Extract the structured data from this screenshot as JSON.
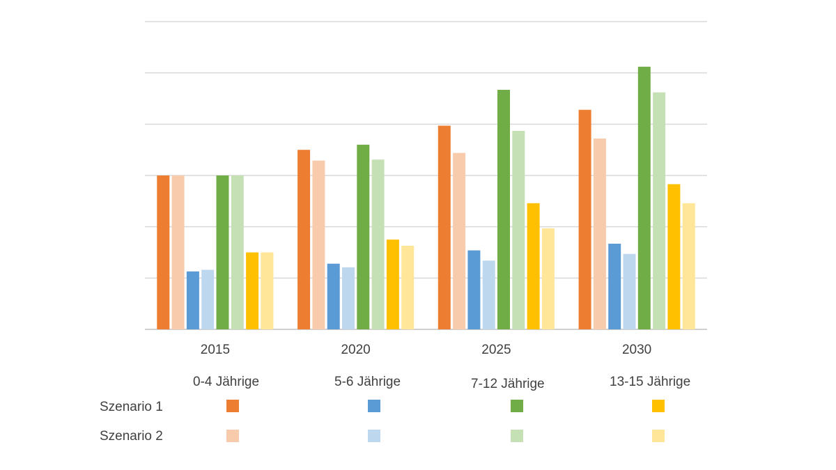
{
  "chart_data": {
    "type": "bar",
    "title": "",
    "xlabel": "",
    "ylabel": "",
    "ylim": [
      0,
      6
    ],
    "y_gridlines": [
      1,
      2,
      3,
      4,
      5,
      6
    ],
    "y_tick_labels_shown": false,
    "grid": true,
    "categories": [
      "2015",
      "2020",
      "2025",
      "2030"
    ],
    "series": [
      {
        "name": "0-4 Jährige Szenario 1",
        "color": "#ED7D31",
        "values": [
          3.0,
          3.5,
          3.97,
          4.28
        ]
      },
      {
        "name": "0-4 Jährige Szenario 2",
        "color": "#F8CBAD",
        "values": [
          3.0,
          3.29,
          3.44,
          3.72
        ]
      },
      {
        "name": "5-6 Jährige Szenario 1",
        "color": "#5B9BD5",
        "values": [
          1.13,
          1.28,
          1.54,
          1.67
        ]
      },
      {
        "name": "5-6 Jährige Szenario 2",
        "color": "#BDD7EE",
        "values": [
          1.16,
          1.21,
          1.34,
          1.47
        ]
      },
      {
        "name": "7-12 Jährige Szenario 1",
        "color": "#70AD47",
        "values": [
          3.0,
          3.6,
          4.67,
          5.12
        ]
      },
      {
        "name": "7-12 Jährige Szenario 2",
        "color": "#C5E0B4",
        "values": [
          3.0,
          3.31,
          3.87,
          4.62
        ]
      },
      {
        "name": "13-15 Jährige Szenario 1",
        "color": "#FFC000",
        "values": [
          1.5,
          1.75,
          2.46,
          2.83
        ]
      },
      {
        "name": "13-15 Jährige Szenario 2",
        "color": "#FFE699",
        "values": [
          1.5,
          1.63,
          1.97,
          2.46
        ]
      }
    ],
    "legend": {
      "placement": "bottom",
      "groups": [
        "0-4 Jährige",
        "5-6 Jährige",
        "7-12 Jährige",
        "13-15 Jährige"
      ],
      "rows": [
        "Szenario 1",
        "Szenario 2"
      ]
    }
  }
}
